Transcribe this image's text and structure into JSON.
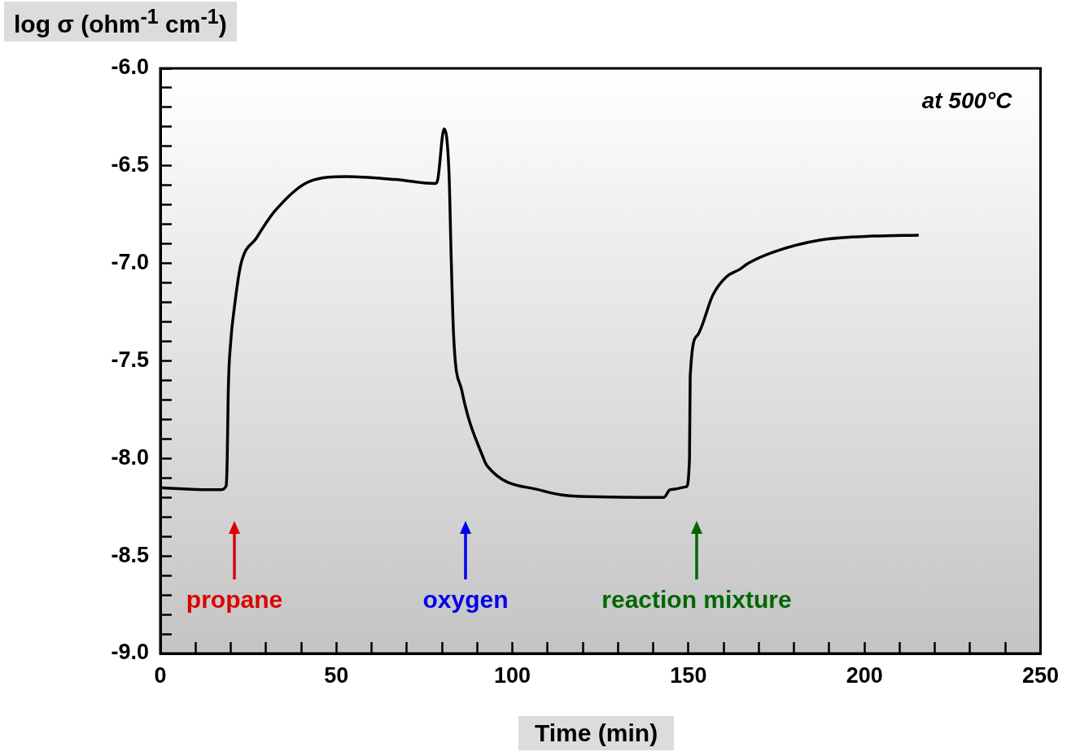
{
  "chart_data": {
    "type": "line",
    "xlabel": "Time (min)",
    "ylabel": "log σ (ohm$^{-1}$ cm$^{-1}$)",
    "annotations": [
      "at 500°C",
      "propane",
      "oxygen",
      "reaction mixture"
    ],
    "x": [
      0,
      12,
      17.3,
      18.7,
      19.0,
      19.3,
      20.0,
      21.0,
      22.8,
      27.3,
      32.6,
      42.3,
      53,
      66.7,
      78.1,
      78.8,
      80.6,
      82,
      82.6,
      83.3,
      85.6,
      91.8,
      92.9,
      108.4,
      119,
      143,
      144.8,
      149.4,
      150.3,
      150.5,
      152.5,
      157,
      160.7,
      164.6,
      166.9,
      174.4,
      187.4,
      202.6,
      215.4
    ],
    "values": [
      -8.15,
      -8.16,
      -8.16,
      -8.14,
      -8.0,
      -7.65,
      -7.4,
      -7.23,
      -7.01,
      -6.87,
      -6.73,
      -6.58,
      -6.555,
      -6.57,
      -6.59,
      -6.57,
      -6.31,
      -6.54,
      -6.96,
      -7.37,
      -7.65,
      -8.0,
      -8.04,
      -8.165,
      -8.195,
      -8.2,
      -8.16,
      -8.145,
      -8.0,
      -7.58,
      -7.37,
      -7.16,
      -7.07,
      -7.03,
      -7.0,
      -6.94,
      -6.88,
      -6.86,
      -6.855
    ],
    "color": "#000000",
    "marker": "none",
    "line_style": "solid",
    "grid": false,
    "legend": false,
    "xlim": [
      0,
      250
    ],
    "xticks": [
      0,
      50,
      100,
      150,
      200,
      250
    ],
    "ylim": [
      -9,
      -6
    ],
    "yticks": [
      {
        "value": -9,
        "label": "-9.0"
      },
      -8.5,
      {
        "value": -8,
        "label": "-8.0"
      },
      -7.5,
      {
        "value": -7,
        "label": "-7.0"
      },
      -6.5,
      {
        "value": -6,
        "label": "-6.0"
      }
    ]
  }
}
